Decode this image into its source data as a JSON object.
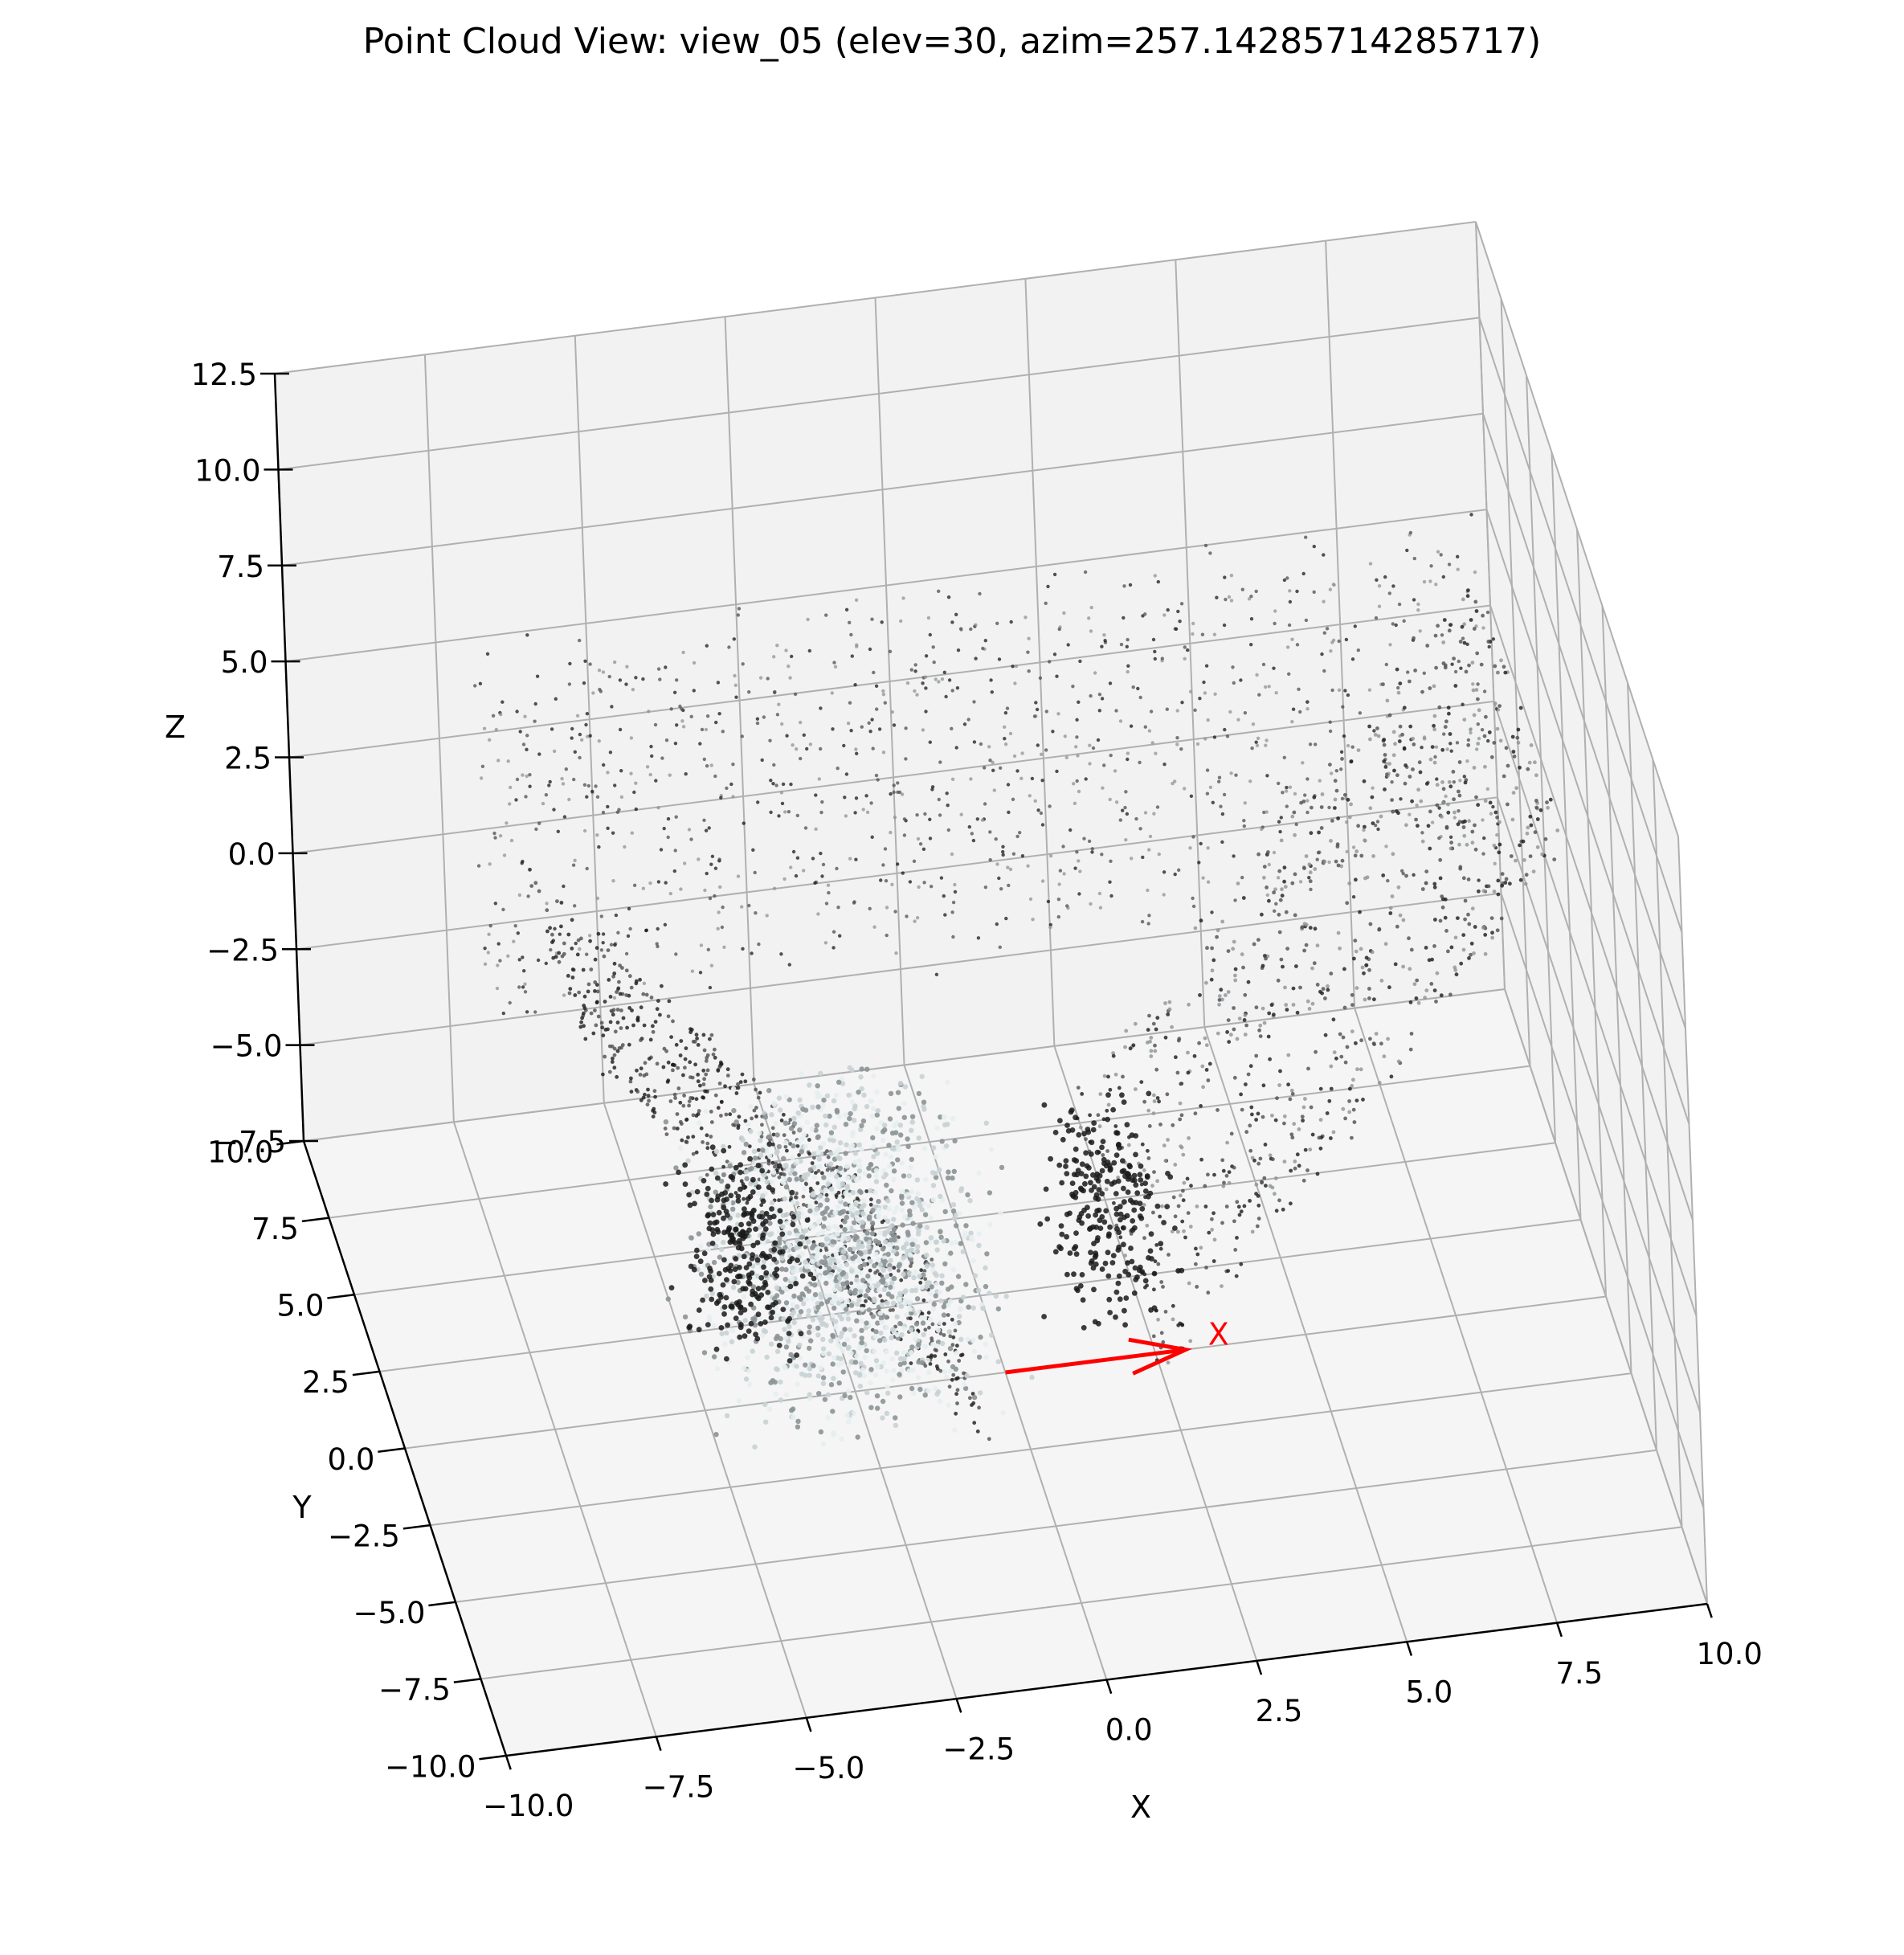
{
  "chart_data": {
    "type": "scatter",
    "subtype": "3d-point-cloud",
    "title": "Point Cloud View: view_05 (elev=30, azim=257.14285714285717)",
    "view": {
      "name": "view_05",
      "elev": 30,
      "azim": 257.14285714285717
    },
    "xlabel": "X",
    "ylabel": "Y",
    "zlabel": "Z",
    "xlim": [
      -10,
      10
    ],
    "ylim": [
      -10,
      10
    ],
    "zlim": [
      -7.5,
      12.5
    ],
    "x_ticks": [
      "−10.0",
      "−7.5",
      "−5.0",
      "−2.5",
      "0.0",
      "2.5",
      "5.0",
      "7.5",
      "10.0"
    ],
    "y_ticks": [
      "−10.0",
      "−7.5",
      "−5.0",
      "−2.5",
      "0.0",
      "2.5",
      "5.0",
      "7.5",
      "10.0"
    ],
    "z_ticks": [
      "−7.5",
      "−5.0",
      "−2.5",
      "0.0",
      "2.5",
      "5.0",
      "7.5",
      "10.0",
      "12.5"
    ],
    "grid": true,
    "pane_color": "#f2f2f2",
    "floor_pane_color": "#f5f5f5",
    "grid_color": "#b0b0b0",
    "point_colors": [
      "#1a1a1a",
      "#4d4d4d",
      "#8c9496",
      "#c8d2d4",
      "#e6eef0"
    ],
    "point_cloud_shape": "bowl-shaped scene of walls, a floor and parked cars",
    "point_cloud_extent": {
      "x": [
        -7.5,
        9.5
      ],
      "y": [
        -5,
        7.5
      ],
      "z": [
        -7.5,
        7.5
      ]
    },
    "annotations": [
      {
        "type": "arrow",
        "label": "X",
        "color": "#ff0000",
        "from": [
          0,
          0,
          -7.5
        ],
        "to": [
          3,
          0,
          -7.5
        ]
      }
    ]
  }
}
